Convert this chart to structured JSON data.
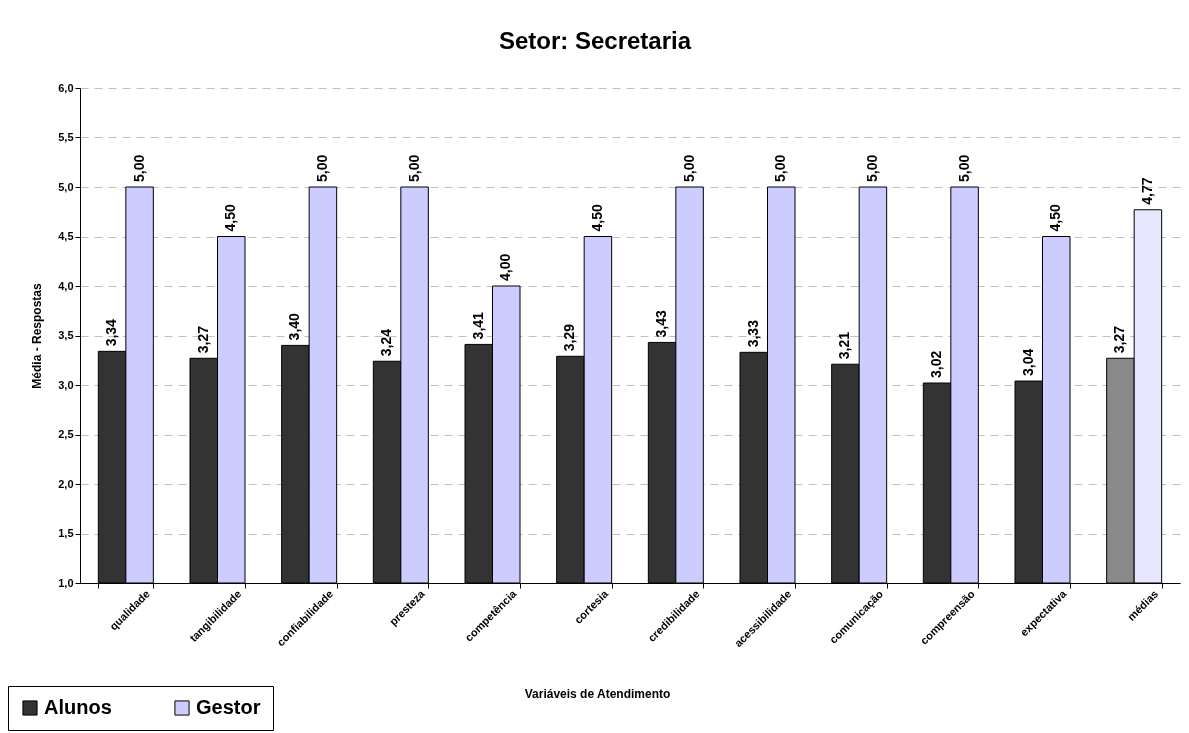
{
  "chart_data": {
    "type": "bar",
    "title": "Setor: Secretaria",
    "xlabel": "Variáveis de Atendimento",
    "ylabel": "Média - Respostas",
    "categories": [
      "qualidade",
      "tangibilidade",
      "confiabilidade",
      "presteza",
      "competência",
      "cortesia",
      "credibilidade",
      "acessibilidade",
      "comunicação",
      "compreensão",
      "expectativa",
      "médias"
    ],
    "series": [
      {
        "name": "Alunos",
        "color": "#333333",
        "colors": [
          "#333333",
          "#333333",
          "#333333",
          "#333333",
          "#333333",
          "#333333",
          "#333333",
          "#333333",
          "#333333",
          "#333333",
          "#333333",
          "#8a8a8a"
        ],
        "values": [
          3.34,
          3.27,
          3.4,
          3.24,
          3.41,
          3.29,
          3.43,
          3.33,
          3.21,
          3.02,
          3.04,
          3.27
        ],
        "value_labels": [
          "3,34",
          "3,27",
          "3,40",
          "3,24",
          "3,41",
          "3,29",
          "3,43",
          "3,33",
          "3,21",
          "3,02",
          "3,04",
          "3,27"
        ]
      },
      {
        "name": "Gestor",
        "color": "#ccccff",
        "colors": [
          "#ccccff",
          "#ccccff",
          "#ccccff",
          "#ccccff",
          "#ccccff",
          "#ccccff",
          "#ccccff",
          "#ccccff",
          "#ccccff",
          "#ccccff",
          "#ccccff",
          "#e6e6ff"
        ],
        "values": [
          5.0,
          4.5,
          5.0,
          5.0,
          4.0,
          4.5,
          5.0,
          5.0,
          5.0,
          5.0,
          4.5,
          4.77
        ],
        "value_labels": [
          "5,00",
          "4,50",
          "5,00",
          "5,00",
          "4,00",
          "4,50",
          "5,00",
          "5,00",
          "5,00",
          "5,00",
          "4,50",
          "4,77"
        ]
      }
    ],
    "ylim": [
      1,
      6
    ],
    "yticks": [
      {
        "value": 1,
        "label": "1,0"
      },
      {
        "value": 1.5,
        "label": "1,5"
      },
      {
        "value": 2,
        "label": "2,0"
      },
      {
        "value": 2.5,
        "label": "2,5"
      },
      {
        "value": 3,
        "label": "3,0"
      },
      {
        "value": 3.5,
        "label": "3,5"
      },
      {
        "value": 4,
        "label": "4,0"
      },
      {
        "value": 4.5,
        "label": "4,5"
      },
      {
        "value": 5,
        "label": "5,0"
      },
      {
        "value": 5.5,
        "label": "5,5"
      },
      {
        "value": 6,
        "label": "6,0"
      }
    ],
    "grid": "y",
    "legend": "bottom left"
  }
}
